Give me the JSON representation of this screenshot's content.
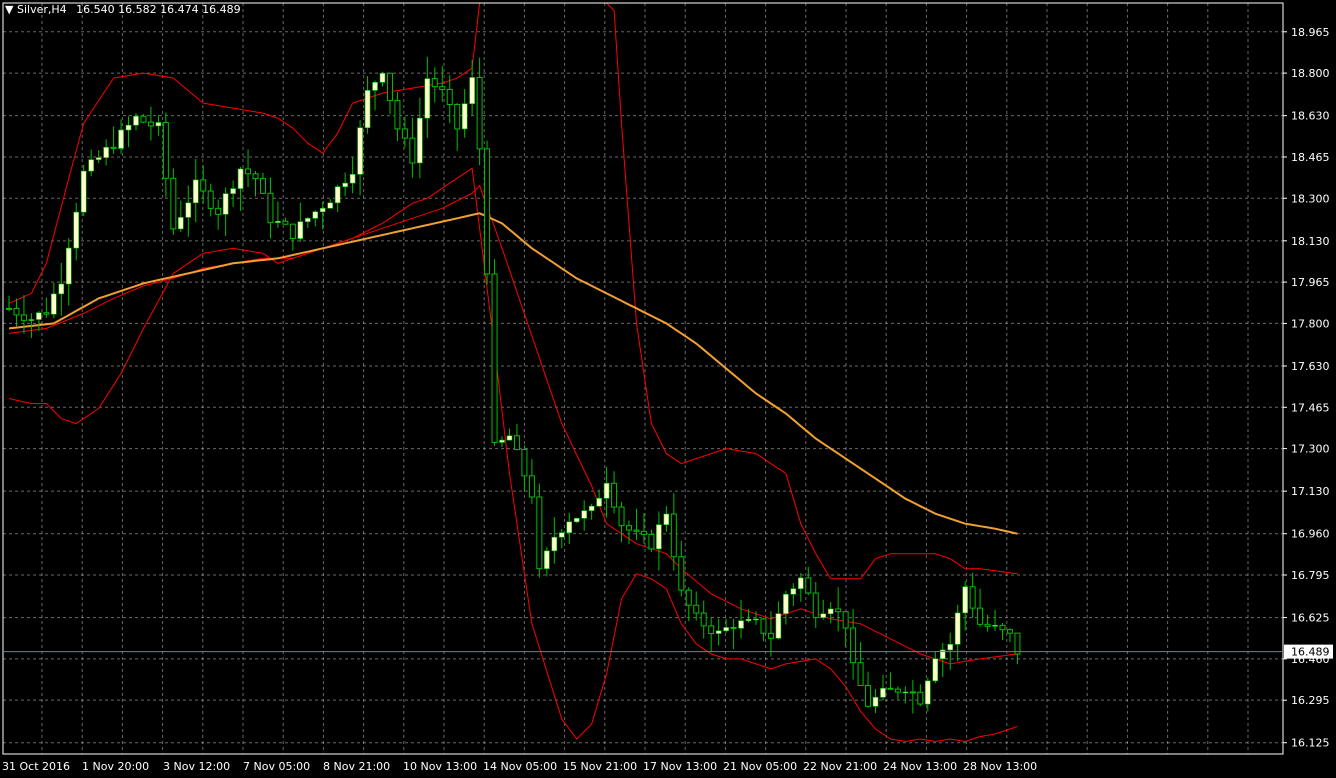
{
  "header": {
    "symbol": "Silver,H4",
    "ohlc": "16.540 16.582 16.474 16.489"
  },
  "colors": {
    "background": "#000000",
    "grid": "#c0c0c0",
    "frame": "#ffffff",
    "bull_candle": "#ffffcc",
    "wick": "#00c000",
    "bollinger": "#ff0000",
    "moving_average": "#f0a030",
    "price_line": "#708090"
  },
  "chart_data": {
    "type": "candlestick",
    "timeframe": "H4",
    "ylim": [
      16.08,
      19.08
    ],
    "y_ticks": [
      "18.965",
      "18.800",
      "18.630",
      "18.465",
      "18.300",
      "18.130",
      "17.965",
      "17.800",
      "17.630",
      "17.465",
      "17.300",
      "17.130",
      "16.960",
      "16.795",
      "16.625",
      "16.460",
      "16.295",
      "16.125"
    ],
    "x_ticks": [
      "31 Oct 2016",
      "1 Nov 20:00",
      "3 Nov 12:00",
      "7 Nov 05:00",
      "8 Nov 21:00",
      "10 Nov 13:00",
      "14 Nov 05:00",
      "15 Nov 21:00",
      "17 Nov 13:00",
      "21 Nov 05:00",
      "22 Nov 21:00",
      "24 Nov 13:00",
      "28 Nov 13:00"
    ],
    "current_price": "16.489",
    "grid": true,
    "anchors": [
      [
        0,
        17.86
      ],
      [
        3,
        17.82
      ],
      [
        5,
        17.85
      ],
      [
        7,
        17.98
      ],
      [
        10,
        18.4
      ],
      [
        14,
        18.52
      ],
      [
        17,
        18.62
      ],
      [
        20,
        18.58
      ],
      [
        22,
        18.18
      ],
      [
        25,
        18.35
      ],
      [
        28,
        18.25
      ],
      [
        31,
        18.42
      ],
      [
        33,
        18.38
      ],
      [
        35,
        18.22
      ],
      [
        38,
        18.16
      ],
      [
        40,
        18.22
      ],
      [
        43,
        18.3
      ],
      [
        46,
        18.42
      ],
      [
        48,
        18.72
      ],
      [
        50,
        18.82
      ],
      [
        52,
        18.58
      ],
      [
        54,
        18.46
      ],
      [
        56,
        18.78
      ],
      [
        58,
        18.72
      ],
      [
        60,
        18.58
      ],
      [
        62,
        18.77
      ],
      [
        63,
        18.5
      ],
      [
        64,
        18.02
      ],
      [
        65,
        17.3
      ],
      [
        67,
        17.35
      ],
      [
        70,
        17.12
      ],
      [
        71,
        16.8
      ],
      [
        73,
        16.95
      ],
      [
        75,
        17.02
      ],
      [
        78,
        17.05
      ],
      [
        80,
        17.18
      ],
      [
        82,
        17.0
      ],
      [
        84,
        16.95
      ],
      [
        86,
        16.92
      ],
      [
        88,
        17.05
      ],
      [
        90,
        16.72
      ],
      [
        92,
        16.62
      ],
      [
        95,
        16.56
      ],
      [
        97,
        16.6
      ],
      [
        100,
        16.6
      ],
      [
        102,
        16.55
      ],
      [
        104,
        16.72
      ],
      [
        106,
        16.78
      ],
      [
        108,
        16.65
      ],
      [
        110,
        16.68
      ],
      [
        112,
        16.6
      ],
      [
        113,
        16.42
      ],
      [
        115,
        16.28
      ],
      [
        117,
        16.32
      ],
      [
        120,
        16.35
      ],
      [
        122,
        16.3
      ],
      [
        124,
        16.48
      ],
      [
        126,
        16.52
      ],
      [
        128,
        16.75
      ],
      [
        130,
        16.6
      ],
      [
        132,
        16.58
      ],
      [
        134,
        16.55
      ],
      [
        135,
        16.49
      ]
    ],
    "bands": {
      "upper_anchors": [
        [
          0,
          17.88
        ],
        [
          3,
          17.92
        ],
        [
          5,
          18.04
        ],
        [
          8,
          18.38
        ],
        [
          10,
          18.6
        ],
        [
          14,
          18.78
        ],
        [
          18,
          18.8
        ],
        [
          22,
          18.78
        ],
        [
          26,
          18.68
        ],
        [
          30,
          18.66
        ],
        [
          34,
          18.64
        ],
        [
          36,
          18.62
        ],
        [
          38,
          18.58
        ],
        [
          40,
          18.52
        ],
        [
          42,
          18.48
        ],
        [
          44,
          18.56
        ],
        [
          46,
          18.68
        ],
        [
          50,
          18.72
        ],
        [
          54,
          18.74
        ],
        [
          58,
          18.76
        ],
        [
          60,
          18.78
        ],
        [
          62,
          18.82
        ],
        [
          63,
          19.5
        ],
        [
          65,
          20.5
        ],
        [
          70,
          21.0
        ],
        [
          76,
          20.0
        ],
        [
          80,
          19.5
        ],
        [
          82,
          18.6
        ],
        [
          84,
          17.8
        ],
        [
          86,
          17.4
        ],
        [
          88,
          17.28
        ],
        [
          90,
          17.24
        ],
        [
          94,
          17.28
        ],
        [
          96,
          17.3
        ],
        [
          100,
          17.28
        ],
        [
          104,
          17.2
        ],
        [
          106,
          17.0
        ],
        [
          108,
          16.88
        ],
        [
          110,
          16.78
        ],
        [
          114,
          16.78
        ],
        [
          116,
          16.86
        ],
        [
          118,
          16.88
        ],
        [
          120,
          16.88
        ],
        [
          124,
          16.88
        ],
        [
          126,
          16.86
        ],
        [
          128,
          16.82
        ],
        [
          130,
          16.82
        ],
        [
          135,
          16.8
        ]
      ],
      "lower_anchors": [
        [
          0,
          17.5
        ],
        [
          3,
          17.48
        ],
        [
          5,
          17.48
        ],
        [
          7,
          17.42
        ],
        [
          9,
          17.4
        ],
        [
          12,
          17.46
        ],
        [
          15,
          17.6
        ],
        [
          18,
          17.78
        ],
        [
          22,
          18.0
        ],
        [
          26,
          18.08
        ],
        [
          30,
          18.1
        ],
        [
          34,
          18.08
        ],
        [
          36,
          18.04
        ],
        [
          38,
          18.06
        ],
        [
          40,
          18.08
        ],
        [
          42,
          18.1
        ],
        [
          44,
          18.12
        ],
        [
          46,
          18.14
        ],
        [
          50,
          18.2
        ],
        [
          54,
          18.28
        ],
        [
          56,
          18.3
        ],
        [
          58,
          18.34
        ],
        [
          60,
          18.38
        ],
        [
          62,
          18.42
        ],
        [
          63,
          18.18
        ],
        [
          65,
          17.7
        ],
        [
          67,
          17.2
        ],
        [
          70,
          16.6
        ],
        [
          74,
          16.22
        ],
        [
          76,
          16.14
        ],
        [
          78,
          16.2
        ],
        [
          80,
          16.4
        ],
        [
          82,
          16.7
        ],
        [
          84,
          16.8
        ],
        [
          86,
          16.78
        ],
        [
          88,
          16.74
        ],
        [
          90,
          16.6
        ],
        [
          92,
          16.52
        ],
        [
          94,
          16.48
        ],
        [
          96,
          16.46
        ],
        [
          98,
          16.46
        ],
        [
          100,
          16.44
        ],
        [
          102,
          16.42
        ],
        [
          104,
          16.44
        ],
        [
          106,
          16.45
        ],
        [
          108,
          16.46
        ],
        [
          110,
          16.42
        ],
        [
          112,
          16.35
        ],
        [
          114,
          16.25
        ],
        [
          116,
          16.18
        ],
        [
          118,
          16.14
        ],
        [
          120,
          16.13
        ],
        [
          122,
          16.14
        ],
        [
          124,
          16.13
        ],
        [
          126,
          16.14
        ],
        [
          128,
          16.13
        ],
        [
          130,
          16.15
        ],
        [
          132,
          16.16
        ],
        [
          135,
          16.19
        ]
      ],
      "middle_anchors": [
        [
          0,
          17.76
        ],
        [
          5,
          17.78
        ],
        [
          10,
          17.84
        ],
        [
          14,
          17.9
        ],
        [
          18,
          17.95
        ],
        [
          22,
          17.98
        ],
        [
          26,
          18.02
        ],
        [
          30,
          18.04
        ],
        [
          34,
          18.06
        ],
        [
          38,
          18.06
        ],
        [
          42,
          18.1
        ],
        [
          46,
          18.14
        ],
        [
          50,
          18.18
        ],
        [
          54,
          18.22
        ],
        [
          58,
          18.26
        ],
        [
          62,
          18.32
        ],
        [
          63,
          18.35
        ],
        [
          66,
          18.1
        ],
        [
          70,
          17.75
        ],
        [
          74,
          17.4
        ],
        [
          78,
          17.15
        ],
        [
          80,
          17.0
        ],
        [
          84,
          16.92
        ],
        [
          88,
          16.88
        ],
        [
          90,
          16.82
        ],
        [
          94,
          16.72
        ],
        [
          98,
          16.66
        ],
        [
          102,
          16.62
        ],
        [
          106,
          16.66
        ],
        [
          110,
          16.62
        ],
        [
          114,
          16.6
        ],
        [
          118,
          16.54
        ],
        [
          122,
          16.48
        ],
        [
          126,
          16.44
        ],
        [
          130,
          16.46
        ],
        [
          135,
          16.48
        ]
      ]
    },
    "ma_anchors": [
      [
        0,
        17.78
      ],
      [
        6,
        17.8
      ],
      [
        12,
        17.9
      ],
      [
        18,
        17.96
      ],
      [
        24,
        18.0
      ],
      [
        30,
        18.04
      ],
      [
        36,
        18.06
      ],
      [
        42,
        18.1
      ],
      [
        48,
        18.14
      ],
      [
        54,
        18.18
      ],
      [
        60,
        18.22
      ],
      [
        63,
        18.24
      ],
      [
        66,
        18.2
      ],
      [
        70,
        18.1
      ],
      [
        76,
        17.98
      ],
      [
        80,
        17.92
      ],
      [
        84,
        17.86
      ],
      [
        88,
        17.8
      ],
      [
        92,
        17.72
      ],
      [
        96,
        17.62
      ],
      [
        100,
        17.52
      ],
      [
        104,
        17.44
      ],
      [
        108,
        17.34
      ],
      [
        112,
        17.26
      ],
      [
        116,
        17.18
      ],
      [
        120,
        17.1
      ],
      [
        124,
        17.04
      ],
      [
        128,
        17.0
      ],
      [
        132,
        16.98
      ],
      [
        135,
        16.96
      ]
    ]
  }
}
